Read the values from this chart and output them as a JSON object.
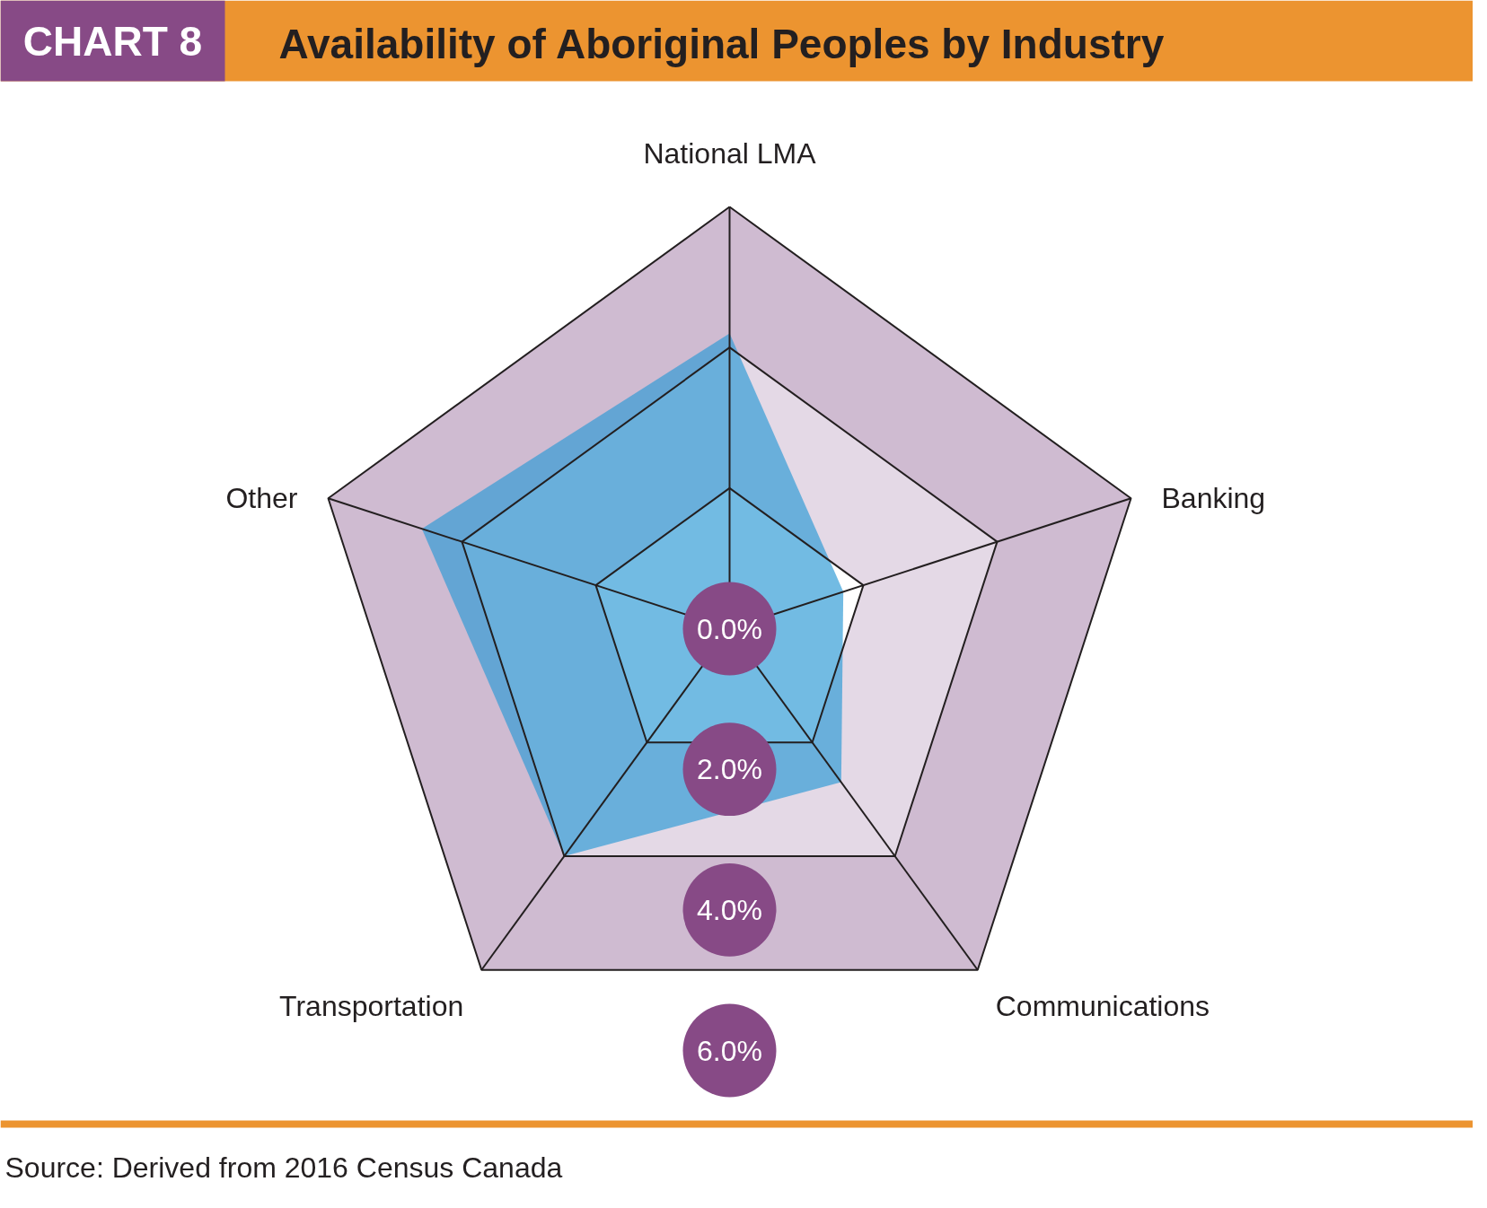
{
  "chart_data": {
    "type": "radar",
    "title": "Availability of Aboriginal Peoples by Industry",
    "annotations": [
      "CHART 8",
      "Source: Derived from 2016 Census Canada"
    ],
    "categories": [
      "National LMA",
      "Banking",
      "Communications",
      "Transportation",
      "Other"
    ],
    "series": [
      {
        "color": "#2f9bd6",
        "values": [
          4.2,
          1.7,
          2.7,
          4.0,
          4.6
        ]
      }
    ],
    "ylim": [
      0,
      6
    ],
    "yticks": [
      {
        "value": 0,
        "label": "0.0%"
      },
      {
        "value": 2,
        "label": "2.0%"
      },
      {
        "value": 4,
        "label": "4.0%"
      },
      {
        "value": 6,
        "label": "6.0%"
      }
    ],
    "grid": true
  }
}
